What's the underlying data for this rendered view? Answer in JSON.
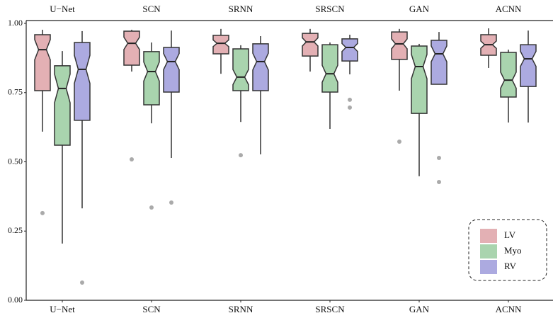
{
  "chart_data": {
    "type": "box",
    "legend": "lower right",
    "categories": [
      "U−Net",
      "SCN",
      "SRNN",
      "SRSCN",
      "GAN",
      "ACNN"
    ],
    "ylim": [
      0,
      1
    ],
    "yticks": [
      {
        "value": 0,
        "label": "0.00"
      },
      {
        "value": 0.25,
        "label": "0.25"
      },
      {
        "value": 0.5,
        "label": "0.50"
      },
      {
        "value": 0.75,
        "label": "0.75"
      },
      {
        "value": 1,
        "label": "1.00"
      }
    ],
    "grid": false,
    "series": [
      {
        "name": "LV",
        "color": "#e3b0b4",
        "values": [
          {
            "min": 0.609,
            "q1": 0.757,
            "median": 0.905,
            "q3": 0.959,
            "max": 0.977,
            "outliers": [
              0.315
            ]
          },
          {
            "min": 0.826,
            "q1": 0.849,
            "median": 0.928,
            "q3": 0.972,
            "max": 0.977,
            "outliers": [
              0.509
            ]
          },
          {
            "min": 0.818,
            "q1": 0.89,
            "median": 0.928,
            "q3": 0.957,
            "max": 0.98,
            "outliers": []
          },
          {
            "min": 0.826,
            "q1": 0.882,
            "median": 0.933,
            "q3": 0.964,
            "max": 0.98,
            "outliers": []
          },
          {
            "min": 0.757,
            "q1": 0.87,
            "median": 0.926,
            "q3": 0.969,
            "max": 0.98,
            "outliers": [
              0.573
            ]
          },
          {
            "min": 0.839,
            "q1": 0.885,
            "median": 0.923,
            "q3": 0.959,
            "max": 0.982,
            "outliers": []
          }
        ]
      },
      {
        "name": "Myo",
        "color": "#a9d4ae",
        "values": [
          {
            "min": 0.205,
            "q1": 0.56,
            "median": 0.765,
            "q3": 0.847,
            "max": 0.9,
            "outliers": []
          },
          {
            "min": 0.639,
            "q1": 0.706,
            "median": 0.826,
            "q3": 0.898,
            "max": 0.931,
            "outliers": [
              0.335
            ]
          },
          {
            "min": 0.644,
            "q1": 0.757,
            "median": 0.806,
            "q3": 0.908,
            "max": 0.921,
            "outliers": [
              0.524
            ]
          },
          {
            "min": 0.619,
            "q1": 0.752,
            "median": 0.818,
            "q3": 0.923,
            "max": 0.931,
            "outliers": []
          },
          {
            "min": 0.448,
            "q1": 0.675,
            "median": 0.844,
            "q3": 0.918,
            "max": 0.926,
            "outliers": []
          },
          {
            "min": 0.642,
            "q1": 0.734,
            "median": 0.795,
            "q3": 0.895,
            "max": 0.905,
            "outliers": []
          }
        ]
      },
      {
        "name": "RV",
        "color": "#acaae0",
        "values": [
          {
            "min": 0.332,
            "q1": 0.65,
            "median": 0.834,
            "q3": 0.931,
            "max": 0.972,
            "outliers": [
              0.064
            ]
          },
          {
            "min": 0.514,
            "q1": 0.752,
            "median": 0.862,
            "q3": 0.913,
            "max": 0.974,
            "outliers": [
              0.353
            ]
          },
          {
            "min": 0.527,
            "q1": 0.757,
            "median": 0.862,
            "q3": 0.926,
            "max": 0.954,
            "outliers": []
          },
          {
            "min": 0.816,
            "q1": 0.864,
            "median": 0.913,
            "q3": 0.944,
            "max": 0.959,
            "outliers": [
              0.724,
              0.696
            ]
          },
          {
            "min": 0.78,
            "q1": 0.78,
            "median": 0.89,
            "q3": 0.939,
            "max": 0.969,
            "outliers": [
              0.514,
              0.427
            ]
          },
          {
            "min": 0.642,
            "q1": 0.772,
            "median": 0.872,
            "q3": 0.923,
            "max": 0.974,
            "outliers": []
          }
        ]
      }
    ]
  }
}
